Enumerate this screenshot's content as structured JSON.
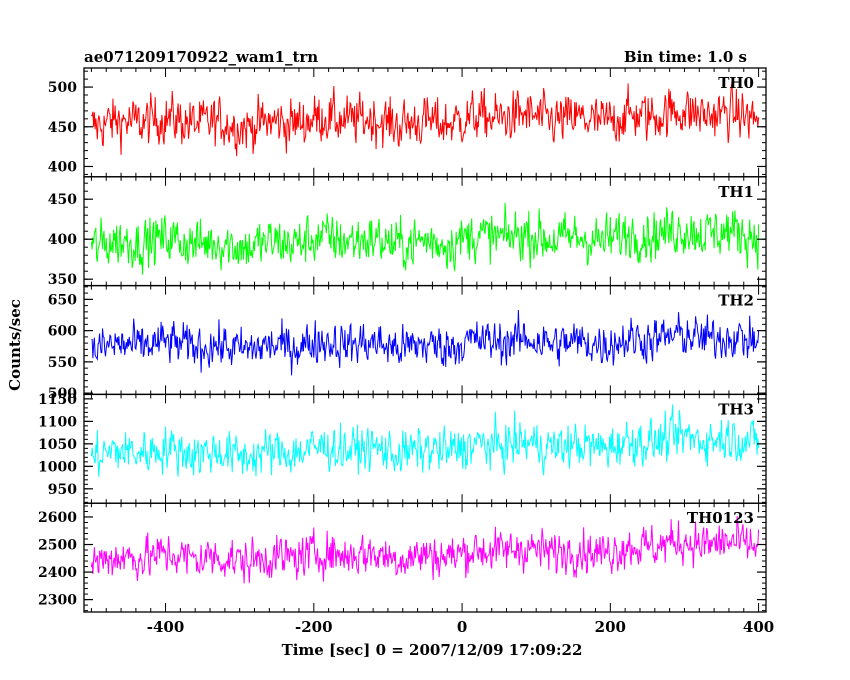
{
  "title_left": "ae071209170922_wam1_trn",
  "title_right": "Bin time: 1.0 s",
  "ylabel": "Counts/sec",
  "xlabel": "Time [sec] 0 = 2007/12/09 17:09:22",
  "chart_data": {
    "type": "line",
    "x_range": [
      -510,
      410
    ],
    "x_ticks": [
      -400,
      -200,
      0,
      200,
      400
    ],
    "x_start": -500,
    "x_end": 400,
    "bin_time_s": 1.0,
    "panels": [
      {
        "name": "TH0",
        "color": "#ff0000",
        "ylim": [
          387,
          524
        ],
        "yticks": [
          400,
          450,
          500
        ],
        "mean": 455,
        "noise": 20,
        "trend_end": 12
      },
      {
        "name": "TH1",
        "color": "#00ff00",
        "ylim": [
          342,
          478
        ],
        "yticks": [
          350,
          400,
          450
        ],
        "mean": 395,
        "noise": 20,
        "trend_end": 15
      },
      {
        "name": "TH2",
        "color": "#0000ff",
        "ylim": [
          498,
          672
        ],
        "yticks": [
          500,
          550,
          600,
          650
        ],
        "mean": 575,
        "noise": 22,
        "trend_end": 15
      },
      {
        "name": "TH3",
        "color": "#00ffff",
        "ylim": [
          918,
          1160
        ],
        "yticks": [
          950,
          1000,
          1050,
          1100,
          1150
        ],
        "mean": 1030,
        "noise": 32,
        "trend_end": 35
      },
      {
        "name": "TH0123",
        "color": "#ff00ff",
        "ylim": [
          2255,
          2650
        ],
        "yticks": [
          2300,
          2400,
          2500,
          2600
        ],
        "mean": 2450,
        "noise": 50,
        "trend_end": 60
      }
    ]
  }
}
